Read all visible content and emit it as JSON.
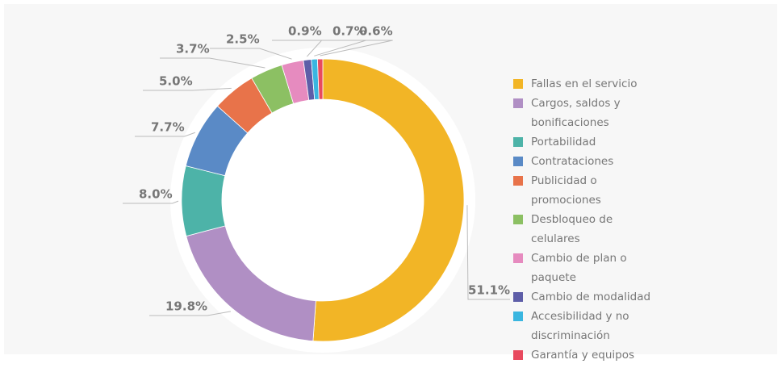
{
  "chart_data": {
    "type": "pie",
    "categories": [
      "Fallas en el servicio",
      "Cargos, saldos y bonificaciones",
      "Portabilidad",
      "Contrataciones",
      "Publicidad o promociones",
      "Desbloqueo de celulares",
      "Cambio de plan o paquete",
      "Cambio de modalidad",
      "Accesibilidad y no discriminación",
      "Garantía y equipos"
    ],
    "values": [
      51.1,
      19.8,
      8.0,
      7.7,
      5.0,
      3.7,
      2.5,
      0.9,
      0.7,
      0.6
    ],
    "value_labels": [
      "51.1%",
      "19.8%",
      "8.0%",
      "7.7%",
      "5.0%",
      "3.7%",
      "2.5%",
      "0.9%",
      "0.7%",
      "0.6%"
    ],
    "colors": [
      "#f2b526",
      "#b08fc4",
      "#4db3a8",
      "#5a8ac6",
      "#e8734a",
      "#8cc063",
      "#e68bbf",
      "#5e5ea8",
      "#3ab6e0",
      "#e84a5f"
    ],
    "donut": true,
    "legend": "right"
  }
}
